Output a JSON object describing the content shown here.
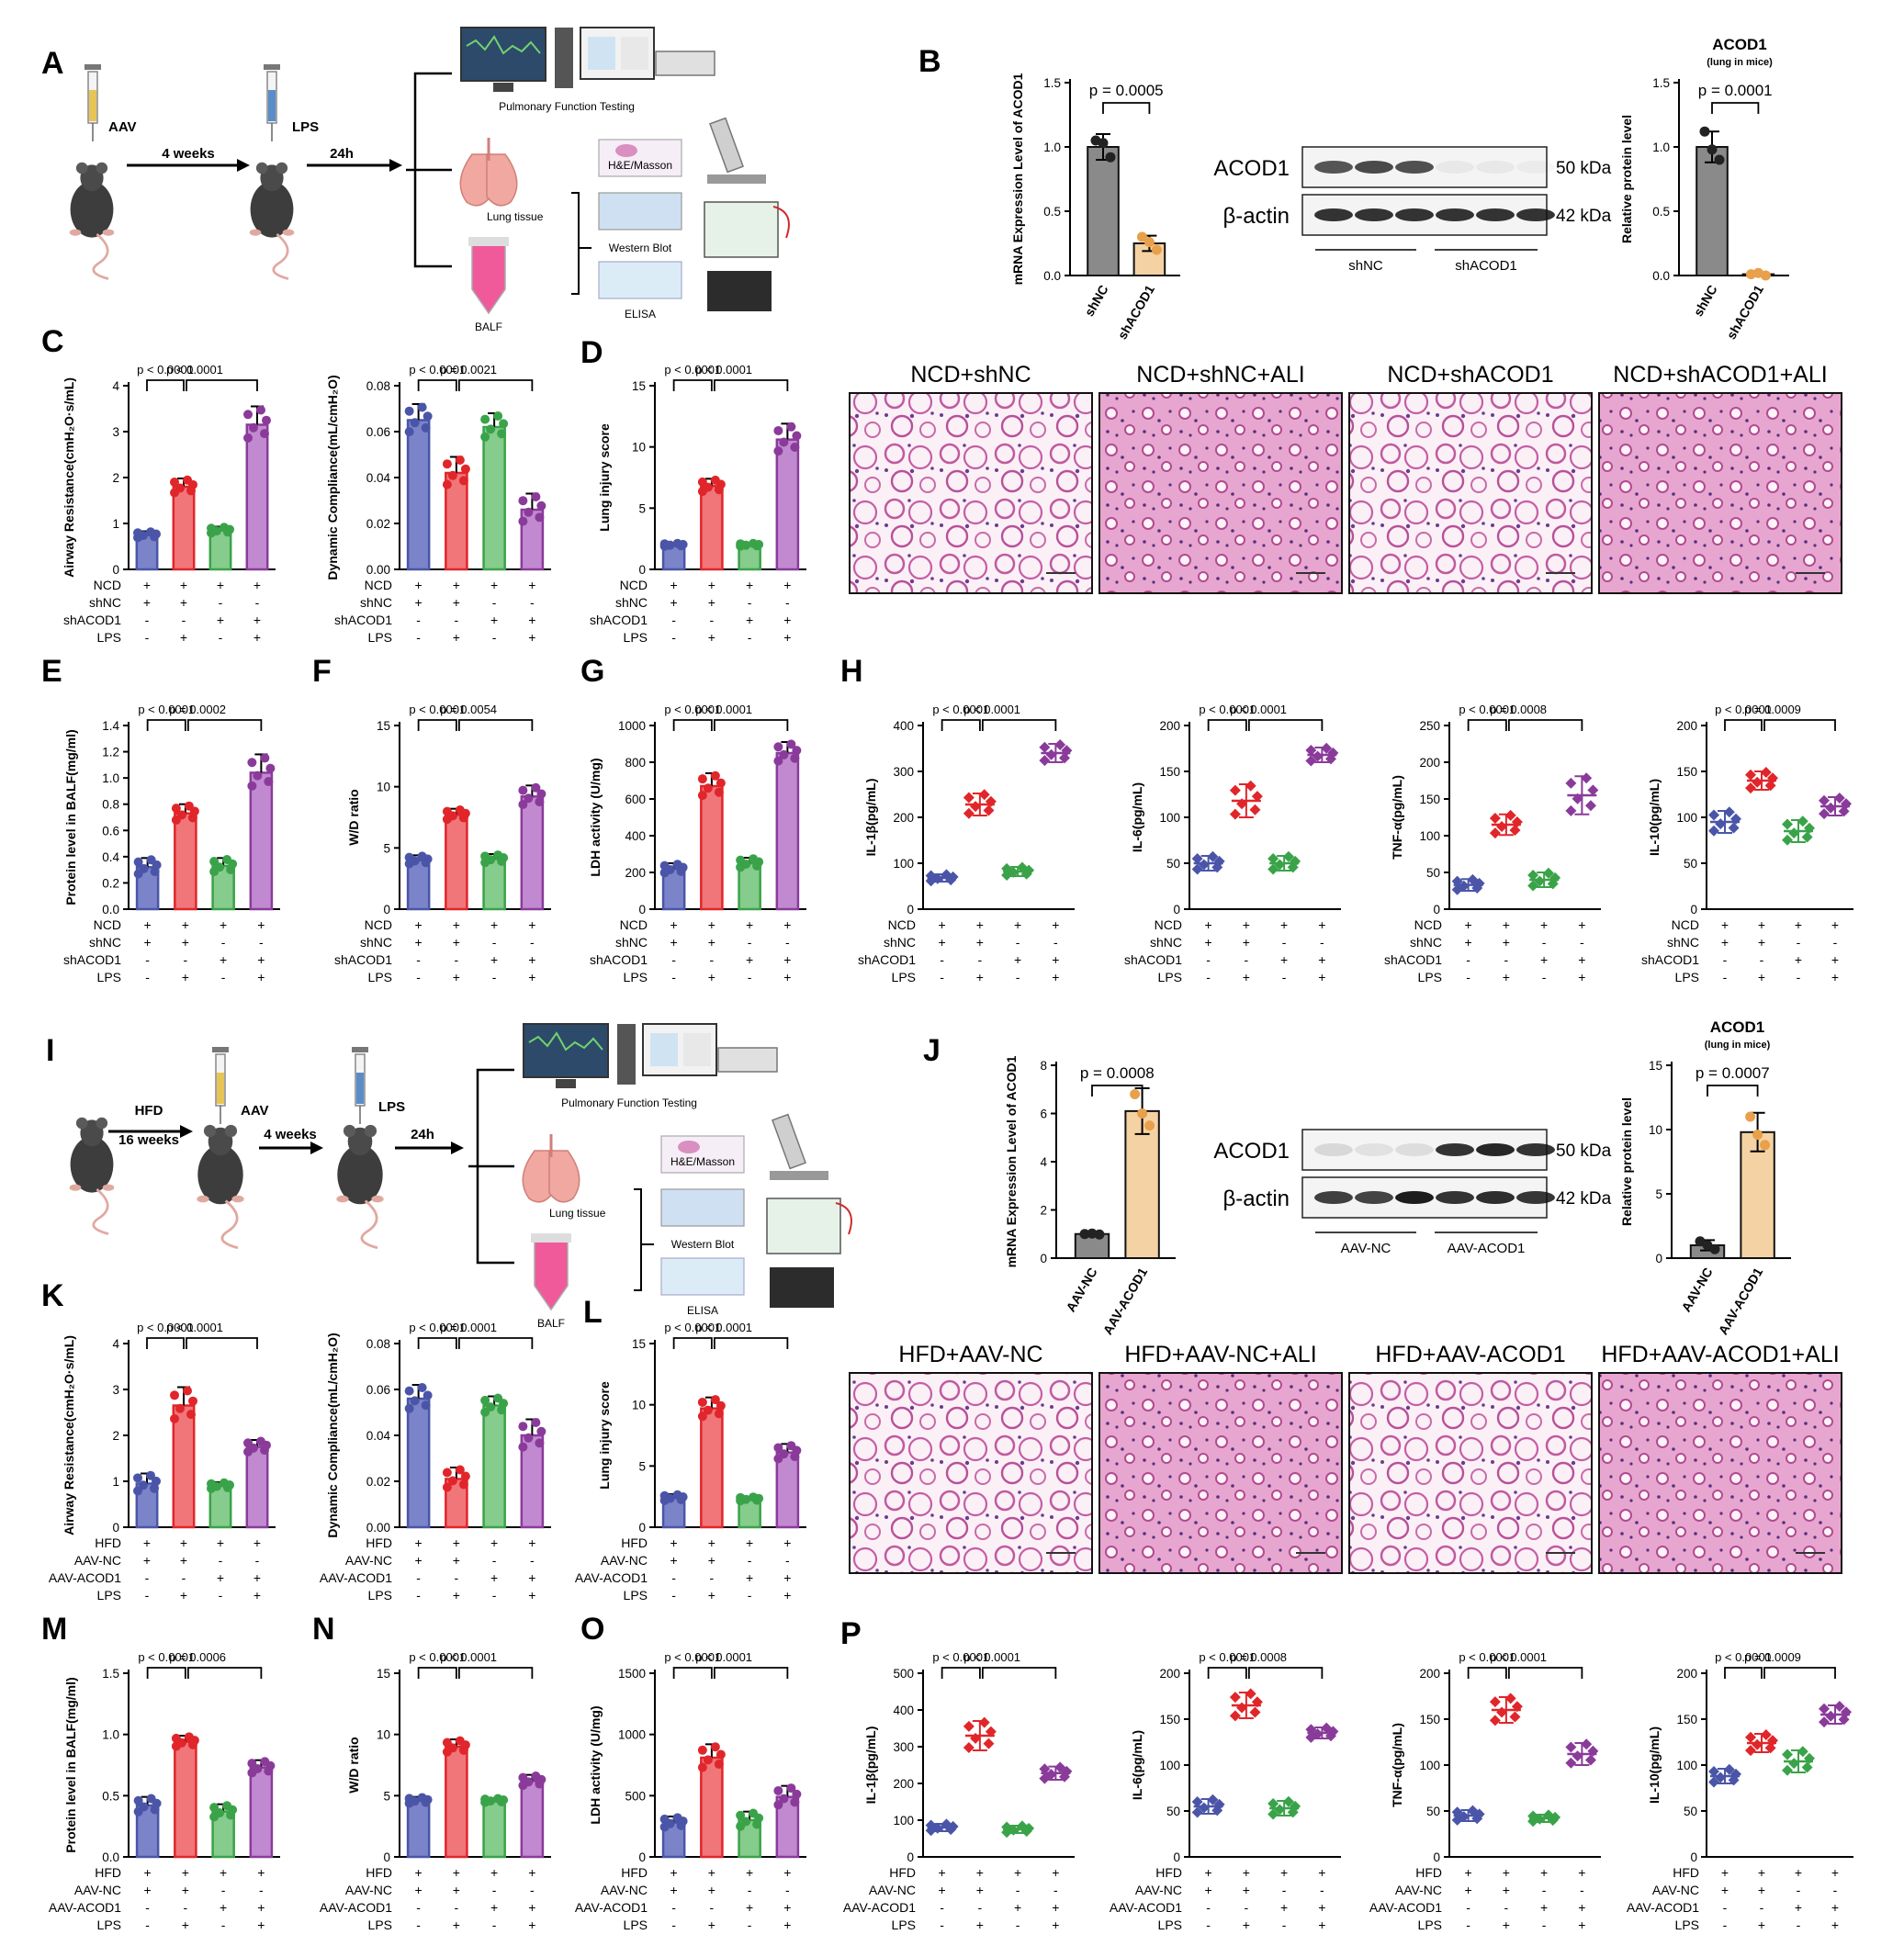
{
  "colors": {
    "blue": "#4b55a8",
    "blueFill": "#7b84c8",
    "red": "#e0262a",
    "redFill": "#f0767a",
    "green": "#3aa349",
    "greenFill": "#86cc8d",
    "purple": "#8a3b9a",
    "purpleFill": "#c18ad0",
    "gray": "#666666",
    "grayFill": "#8a8a8a",
    "tan": "#e8a04a",
    "tanFill": "#f5d2a3",
    "he": "#d98fc0"
  },
  "panels": {
    "A": "A",
    "B": "B",
    "C": "C",
    "D": "D",
    "E": "E",
    "F": "F",
    "G": "G",
    "H": "H",
    "I": "I",
    "J": "J",
    "K": "K",
    "L": "L",
    "M": "M",
    "N": "N",
    "O": "O",
    "P": "P"
  },
  "schemeA": {
    "aav": "AAV",
    "lps": "LPS",
    "weeks": "4 weeks",
    "h24": "24h",
    "pft": "Pulmonary Function Testing",
    "lung": "Lung tissue",
    "balf": "BALF",
    "he": "H&E/Masson",
    "wb": "Western Blot",
    "elisa": "ELISA"
  },
  "schemeI": {
    "hfd": "HFD",
    "weeks16": "16 weeks",
    "aav": "AAV",
    "weeks": "4 weeks",
    "lps": "LPS",
    "h24": "24h",
    "pft": "Pulmonary Function Testing",
    "lung": "Lung tissue",
    "balf": "BALF",
    "he": "H&E/Masson",
    "wb": "Western Blot",
    "elisa": "ELISA"
  },
  "groupsTop": {
    "rows": [
      "NCD",
      "shNC",
      "shACOD1",
      "LPS"
    ],
    "signs": [
      [
        "+",
        "+",
        "+",
        "+"
      ],
      [
        "+",
        "+",
        "-",
        "-"
      ],
      [
        "-",
        "-",
        "+",
        "+"
      ],
      [
        "-",
        "+",
        "-",
        "+"
      ]
    ]
  },
  "groupsBottom": {
    "rows": [
      "HFD",
      "AAV-NC",
      "AAV-ACOD1",
      "LPS"
    ],
    "signs": [
      [
        "+",
        "+",
        "+",
        "+"
      ],
      [
        "+",
        "+",
        "-",
        "-"
      ],
      [
        "-",
        "-",
        "+",
        "+"
      ],
      [
        "-",
        "+",
        "-",
        "+"
      ]
    ]
  },
  "westernB": {
    "bands": [
      "ACOD1",
      "β-actin"
    ],
    "kda": [
      "50 kDa",
      "42 kDa"
    ],
    "groups": [
      "shNC",
      "shACOD1"
    ],
    "intensity": [
      [
        0.7,
        0.75,
        0.72,
        0.05,
        0.05,
        0.04
      ],
      [
        0.85,
        0.85,
        0.85,
        0.85,
        0.85,
        0.85
      ]
    ]
  },
  "westernJ": {
    "bands": [
      "ACOD1",
      "β-actin"
    ],
    "kda": [
      "50 kDa",
      "42 kDa"
    ],
    "groups": [
      "AAV-NC",
      "AAV-ACOD1"
    ],
    "intensity": [
      [
        0.12,
        0.08,
        0.1,
        0.85,
        0.9,
        0.85
      ],
      [
        0.8,
        0.78,
        0.95,
        0.85,
        0.88,
        0.84
      ]
    ]
  },
  "histoTop": [
    "NCD+shNC",
    "NCD+shNC+ALI",
    "NCD+shACOD1",
    "NCD+shACOD1+ALI"
  ],
  "histoBottom": [
    "HFD+AAV-NC",
    "HFD+AAV-NC+ALI",
    "HFD+AAV-ACOD1",
    "HFD+AAV-ACOD1+ALI"
  ],
  "chart_data": [
    {
      "id": "B1",
      "type": "bar",
      "ylabel": "mRNA Expression Level of ACOD1",
      "categories": [
        "shNC",
        "shACOD1"
      ],
      "values": [
        1.0,
        0.25
      ],
      "errors": [
        0.1,
        0.06
      ],
      "points": [
        [
          1.05,
          0.92,
          1.03
        ],
        [
          0.3,
          0.2,
          0.26
        ]
      ],
      "ylim": [
        0,
        1.5
      ],
      "ticks": [
        "0.0",
        "0.5",
        "1.0",
        "1.5"
      ],
      "pvalues": [
        "p = 0.0005"
      ]
    },
    {
      "id": "B2",
      "type": "bar",
      "title": "ACOD1",
      "subtitle": "(lung in mice)",
      "ylabel": "Relative protein level",
      "categories": [
        "shNC",
        "shACOD1"
      ],
      "values": [
        1.0,
        0.01
      ],
      "errors": [
        0.12,
        0.01
      ],
      "points": [
        [
          1.12,
          0.9,
          0.98
        ],
        [
          0.01,
          0.0,
          0.02
        ]
      ],
      "ylim": [
        0,
        1.5
      ],
      "ticks": [
        "0.0",
        "0.5",
        "1.0",
        "1.5"
      ],
      "pvalues": [
        "p = 0.0001"
      ]
    },
    {
      "id": "C1",
      "type": "bar",
      "ylabel": "Airway Resistance(cmH₂O·s/mL)",
      "values": [
        0.75,
        1.8,
        0.85,
        3.15
      ],
      "errors": [
        0.08,
        0.18,
        0.08,
        0.4
      ],
      "ylim": [
        0,
        4
      ],
      "ticks": [
        "0",
        "1",
        "2",
        "3",
        "4"
      ],
      "pvalues": [
        "p < 0.0001",
        "p < 0.0001"
      ]
    },
    {
      "id": "C2",
      "type": "bar",
      "ylabel": "Dynamic Compliance(mL/cmH₂O)",
      "values": [
        0.065,
        0.042,
        0.062,
        0.026
      ],
      "errors": [
        0.007,
        0.007,
        0.006,
        0.007
      ],
      "ylim": [
        0,
        0.08
      ],
      "ticks": [
        "0.00",
        "0.02",
        "0.04",
        "0.06",
        "0.08"
      ],
      "pvalues": [
        "p < 0.0001",
        "p = 0.0021"
      ]
    },
    {
      "id": "D1",
      "type": "bar",
      "ylabel": "Lung injury score",
      "values": [
        2.0,
        6.8,
        2.0,
        10.6
      ],
      "errors": [
        0.15,
        0.6,
        0.15,
        1.3
      ],
      "ylim": [
        0,
        15
      ],
      "ticks": [
        "0",
        "5",
        "10",
        "15"
      ],
      "pvalues": [
        "p < 0.0001",
        "p < 0.0001"
      ]
    },
    {
      "id": "E1",
      "type": "bar",
      "ylabel": "Protein level in BALF(mg/ml)",
      "values": [
        0.32,
        0.73,
        0.33,
        1.04
      ],
      "errors": [
        0.07,
        0.07,
        0.06,
        0.14
      ],
      "ylim": [
        0,
        1.4
      ],
      "ticks": [
        "0.0",
        "0.2",
        "0.4",
        "0.6",
        "0.8",
        "1.0",
        "1.2",
        "1.4"
      ],
      "pvalues": [
        "p < 0.0001",
        "p = 0.0002"
      ]
    },
    {
      "id": "F1",
      "type": "bar",
      "ylabel": "W/D ratio",
      "values": [
        4.0,
        7.7,
        4.1,
        9.2
      ],
      "errors": [
        0.4,
        0.5,
        0.4,
        0.9
      ],
      "ylim": [
        0,
        15
      ],
      "ticks": [
        "0",
        "5",
        "10",
        "15"
      ],
      "pvalues": [
        "p < 0.0001",
        "p = 0.0054"
      ]
    },
    {
      "id": "G1",
      "type": "bar",
      "ylabel": "LDH activity (U/mg)",
      "values": [
        220,
        670,
        250,
        850
      ],
      "errors": [
        30,
        70,
        30,
        60
      ],
      "ylim": [
        0,
        1000
      ],
      "ticks": [
        "0",
        "200",
        "400",
        "600",
        "800",
        "1000"
      ],
      "pvalues": [
        "p < 0.0001",
        "p < 0.0001"
      ]
    },
    {
      "id": "H1",
      "type": "scatter",
      "ylabel": "IL-1β(pg/mL)",
      "values": [
        68,
        228,
        82,
        340
      ],
      "errors": [
        8,
        24,
        10,
        20
      ],
      "ylim": [
        0,
        400
      ],
      "ticks": [
        "0",
        "100",
        "200",
        "300",
        "400"
      ],
      "pvalues": [
        "p < 0.0001",
        "p < 0.0001"
      ]
    },
    {
      "id": "H2",
      "type": "scatter",
      "ylabel": "IL-6(pg/mL)",
      "values": [
        50,
        118,
        50,
        168
      ],
      "errors": [
        8,
        18,
        8,
        8
      ],
      "ylim": [
        0,
        200
      ],
      "ticks": [
        "0",
        "50",
        "100",
        "150",
        "200"
      ],
      "pvalues": [
        "p < 0.0001",
        "p < 0.0001"
      ]
    },
    {
      "id": "H3",
      "type": "scatter",
      "ylabel": "TNF-α(pg/mL)",
      "values": [
        33,
        115,
        40,
        155
      ],
      "errors": [
        8,
        14,
        10,
        26
      ],
      "ylim": [
        0,
        250
      ],
      "ticks": [
        "0",
        "50",
        "100",
        "150",
        "200",
        "250"
      ],
      "pvalues": [
        "p < 0.0001",
        "p = 0.0008"
      ]
    },
    {
      "id": "H4",
      "type": "scatter",
      "ylabel": "IL-10(pg/mL)",
      "values": [
        95,
        140,
        85,
        112
      ],
      "errors": [
        12,
        10,
        12,
        10
      ],
      "ylim": [
        0,
        200
      ],
      "ticks": [
        "0",
        "50",
        "100",
        "150",
        "200"
      ],
      "pvalues": [
        "p < 0.0001",
        "p = 0.0009"
      ]
    },
    {
      "id": "J1",
      "type": "bar",
      "ylabel": "mRNA Expression Level of ACOD1",
      "categories": [
        "AAV-NC",
        "AAV-ACOD1"
      ],
      "values": [
        1.0,
        6.1
      ],
      "errors": [
        0.05,
        0.95
      ],
      "points": [
        [
          1.0,
          0.98,
          1.02
        ],
        [
          6.8,
          5.5,
          6.0
        ]
      ],
      "ylim": [
        0,
        8
      ],
      "ticks": [
        "0",
        "2",
        "4",
        "6",
        "8"
      ],
      "pvalues": [
        "p = 0.0008"
      ]
    },
    {
      "id": "J2",
      "type": "bar",
      "title": "ACOD1",
      "subtitle": "(lung in mice)",
      "ylabel": "Relative protein level",
      "categories": [
        "AAV-NC",
        "AAV-ACOD1"
      ],
      "values": [
        1.0,
        9.8
      ],
      "errors": [
        0.4,
        1.5
      ],
      "points": [
        [
          1.3,
          0.7,
          1.0
        ],
        [
          11.0,
          8.8,
          9.6
        ]
      ],
      "ylim": [
        0,
        15
      ],
      "ticks": [
        "0",
        "5",
        "10",
        "15"
      ],
      "pvalues": [
        "p = 0.0007"
      ]
    },
    {
      "id": "K1",
      "type": "bar",
      "ylabel": "Airway Resistance(cmH₂O·s/mL)",
      "values": [
        0.95,
        2.65,
        0.9,
        1.75
      ],
      "errors": [
        0.22,
        0.4,
        0.08,
        0.15
      ],
      "ylim": [
        0,
        4
      ],
      "ticks": [
        "0",
        "1",
        "2",
        "3",
        "4"
      ],
      "pvalues": [
        "p < 0.0001",
        "p < 0.0001"
      ]
    },
    {
      "id": "K2",
      "type": "bar",
      "ylabel": "Dynamic Compliance(mL/cmH₂O)",
      "values": [
        0.056,
        0.021,
        0.053,
        0.04
      ],
      "errors": [
        0.006,
        0.005,
        0.004,
        0.007
      ],
      "ylim": [
        0,
        0.08
      ],
      "ticks": [
        "0.00",
        "0.02",
        "0.04",
        "0.06",
        "0.08"
      ],
      "pvalues": [
        "p < 0.0001",
        "p = 0.0001"
      ]
    },
    {
      "id": "L1",
      "type": "bar",
      "ylabel": "Lung injury score",
      "values": [
        2.4,
        9.7,
        2.3,
        6.1
      ],
      "errors": [
        0.3,
        0.9,
        0.2,
        0.7
      ],
      "ylim": [
        0,
        15
      ],
      "ticks": [
        "0",
        "5",
        "10",
        "15"
      ],
      "pvalues": [
        "p < 0.0001",
        "p < 0.0001"
      ]
    },
    {
      "id": "M1",
      "type": "bar",
      "ylabel": "Protein level in BALF(mg/ml)",
      "values": [
        0.42,
        0.94,
        0.37,
        0.73
      ],
      "errors": [
        0.07,
        0.05,
        0.06,
        0.06
      ],
      "ylim": [
        0,
        1.5
      ],
      "ticks": [
        "0.0",
        "0.5",
        "1.0",
        "1.5"
      ],
      "pvalues": [
        "p < 0.0001",
        "p = 0.0006"
      ]
    },
    {
      "id": "N1",
      "type": "bar",
      "ylabel": "W/D ratio",
      "values": [
        4.6,
        9.0,
        4.6,
        6.2
      ],
      "errors": [
        0.3,
        0.6,
        0.2,
        0.5
      ],
      "ylim": [
        0,
        15
      ],
      "ticks": [
        "0",
        "5",
        "10",
        "15"
      ],
      "pvalues": [
        "p < 0.0001",
        "p < 0.0001"
      ]
    },
    {
      "id": "O1",
      "type": "bar",
      "ylabel": "LDH activity (U/mg)",
      "values": [
        280,
        810,
        300,
        490
      ],
      "errors": [
        50,
        110,
        70,
        90
      ],
      "ylim": [
        0,
        1500
      ],
      "ticks": [
        "0",
        "500",
        "1000",
        "1500"
      ],
      "pvalues": [
        "p < 0.0001",
        "p < 0.0001"
      ]
    },
    {
      "id": "P1",
      "type": "scatter",
      "ylabel": "IL-1β(pg/mL)",
      "values": [
        80,
        330,
        75,
        228
      ],
      "errors": [
        10,
        40,
        10,
        18
      ],
      "ylim": [
        0,
        500
      ],
      "ticks": [
        "0",
        "100",
        "200",
        "300",
        "400",
        "500"
      ],
      "pvalues": [
        "p < 0.0001",
        "p < 0.0001"
      ]
    },
    {
      "id": "P2",
      "type": "scatter",
      "ylabel": "IL-6(pg/mL)",
      "values": [
        55,
        165,
        53,
        135
      ],
      "errors": [
        8,
        14,
        8,
        6
      ],
      "ylim": [
        0,
        200
      ],
      "ticks": [
        "0",
        "50",
        "100",
        "150",
        "200"
      ],
      "pvalues": [
        "p < 0.0001",
        "p = 0.0008"
      ]
    },
    {
      "id": "P3",
      "type": "scatter",
      "ylabel": "TNF-α(pg/mL)",
      "values": [
        45,
        160,
        42,
        112
      ],
      "errors": [
        6,
        14,
        4,
        12
      ],
      "ylim": [
        0,
        200
      ],
      "ticks": [
        "0",
        "50",
        "100",
        "150",
        "200"
      ],
      "pvalues": [
        "p < 0.0001",
        "p < 0.0001"
      ]
    },
    {
      "id": "P4",
      "type": "scatter",
      "ylabel": "IL-10(pg/mL)",
      "values": [
        88,
        124,
        104,
        155
      ],
      "errors": [
        8,
        10,
        12,
        10
      ],
      "ylim": [
        0,
        200
      ],
      "ticks": [
        "0",
        "50",
        "100",
        "150",
        "200"
      ],
      "pvalues": [
        "p < 0.0001",
        "p = 0.0009"
      ]
    }
  ]
}
